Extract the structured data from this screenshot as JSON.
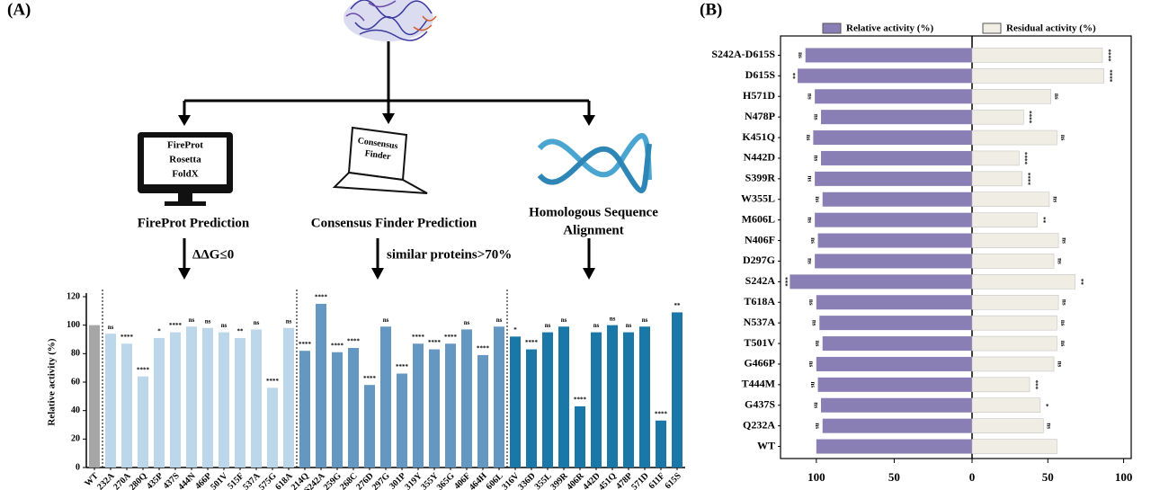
{
  "panel_labels": [
    "(A)",
    "(B)"
  ],
  "diagram": {
    "monitor_lines": [
      "FireProt",
      "Rosetta",
      "FoldX"
    ],
    "laptop_lines": [
      "Consensus",
      "Finder"
    ],
    "methods": [
      "FireProt Prediction",
      "Consensus Finder Prediction",
      "Homologous Sequence",
      "Alignment"
    ],
    "criteria": [
      "ΔΔG≤0",
      "similar proteins>70%"
    ]
  },
  "chart_data": [
    {
      "type": "bar",
      "ylabel": "Relative activity (%)",
      "categories": [
        "WT",
        "232A",
        "270A",
        "280Q",
        "435P",
        "437S",
        "444N",
        "466P",
        "501V",
        "515F",
        "537A",
        "575G",
        "618A",
        "214Q",
        "S242A",
        "259G",
        "268C",
        "276D",
        "297G",
        "301P",
        "319Y",
        "355Y",
        "365G",
        "406F",
        "464H",
        "606L",
        "316V",
        "336D",
        "355L",
        "399R",
        "406R",
        "442D",
        "451Q",
        "478P",
        "571D",
        "611F",
        "615S"
      ],
      "values": [
        100,
        94,
        87,
        64,
        91,
        95,
        99,
        98,
        95,
        91,
        97,
        56,
        98,
        82,
        115,
        81,
        84,
        58,
        99,
        66,
        87,
        83,
        87,
        97,
        79,
        99,
        92,
        83,
        95,
        99,
        43,
        95,
        100,
        95,
        99,
        33,
        109
      ],
      "annotations": [
        null,
        "ns",
        "****",
        "****",
        "*",
        "****",
        "ns",
        "ns",
        "ns",
        "**",
        "ns",
        "****",
        "ns",
        "****",
        "****",
        "****",
        "****",
        "****",
        "ns",
        "****",
        "****",
        "****",
        "****",
        "ns",
        "****",
        "ns",
        "*",
        "****",
        "ns",
        "ns",
        "****",
        "ns",
        "ns",
        "ns",
        "ns",
        "****",
        "**"
      ],
      "colors": [
        "#a6a6a6",
        "#bcd6ea",
        "#bcd6ea",
        "#bcd6ea",
        "#bcd6ea",
        "#bcd6ea",
        "#bcd6ea",
        "#bcd6ea",
        "#bcd6ea",
        "#bcd6ea",
        "#bcd6ea",
        "#bcd6ea",
        "#bcd6ea",
        "#6497c2",
        "#6497c2",
        "#6497c2",
        "#6497c2",
        "#6497c2",
        "#6497c2",
        "#6497c2",
        "#6497c2",
        "#6497c2",
        "#6497c2",
        "#6497c2",
        "#6497c2",
        "#6497c2",
        "#1a78a8",
        "#1a78a8",
        "#1a78a8",
        "#1a78a8",
        "#1a78a8",
        "#1a78a8",
        "#1a78a8",
        "#1a78a8",
        "#1a78a8",
        "#1a78a8",
        "#1a78a8"
      ],
      "ylim": [
        0,
        120
      ],
      "yticks": [
        0,
        20,
        40,
        60,
        80,
        100,
        120
      ]
    },
    {
      "type": "butterfly_bar",
      "categories": [
        "S242A-D615S",
        "D615S",
        "H571D",
        "N478P",
        "K451Q",
        "N442D",
        "S399R",
        "W355L",
        "M606L",
        "N406F",
        "D297G",
        "S242A",
        "T618A",
        "N537A",
        "T501V",
        "G466P",
        "T444M",
        "G437S",
        "Q232A",
        "WT"
      ],
      "series": [
        {
          "name": "Relative activity (%)",
          "color": "#8a7fb5",
          "values": [
            107,
            112,
            101,
            97,
            102,
            97,
            101,
            96,
            101,
            99,
            101,
            117,
            100,
            98,
            96,
            100,
            99,
            97,
            96,
            100
          ],
          "annotations": [
            "ns",
            "**",
            "ns",
            "ns",
            "ns",
            "ns",
            "ns",
            "ns",
            "ns",
            "ns",
            "ns",
            "***",
            "ns",
            "ns",
            "ns",
            "ns",
            "ns",
            "ns",
            "ns",
            null
          ],
          "xlim": [
            0,
            123
          ],
          "xticks": [
            100,
            50,
            0
          ]
        },
        {
          "name": "Residual activity (%)",
          "color": "#efede4",
          "values": [
            86,
            87,
            52,
            34,
            56,
            31,
            33,
            51,
            43,
            57,
            54,
            68,
            57,
            56,
            56,
            54,
            38,
            45,
            47,
            56
          ],
          "annotations": [
            "****",
            "****",
            "ns",
            "****",
            "ns",
            "****",
            "****",
            "ns",
            "**",
            "ns",
            "ns",
            "**",
            "ns",
            "ns",
            "ns",
            "ns",
            "***",
            "*",
            "ns",
            null
          ],
          "xlim": [
            0,
            105
          ],
          "xticks": [
            50,
            100
          ]
        }
      ]
    }
  ]
}
